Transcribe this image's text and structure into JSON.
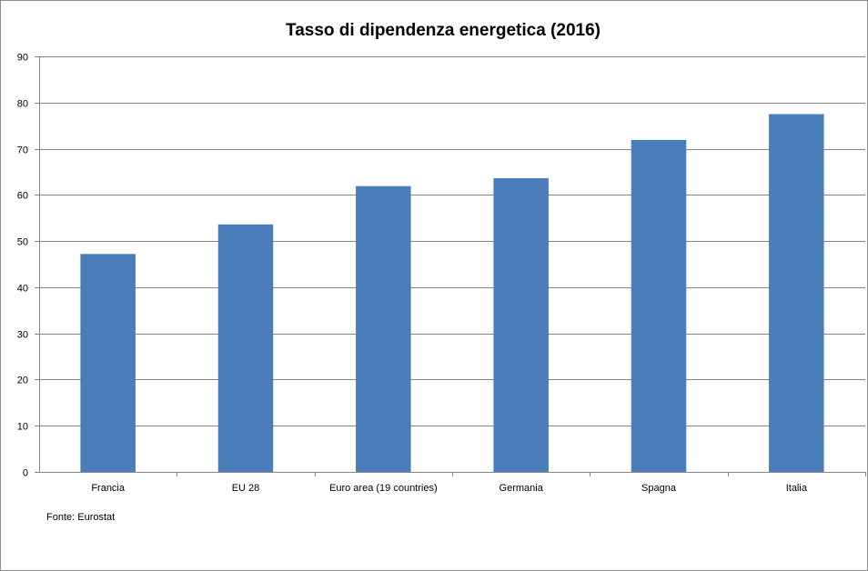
{
  "chart_data": {
    "type": "bar",
    "title": "Tasso di dipendenza energetica (2016)",
    "categories": [
      "Francia",
      "EU 28",
      "Euro area (19 countries)",
      "Germania",
      "Spagna",
      "Italia"
    ],
    "series": [
      {
        "values": [
          47.2,
          53.6,
          61.9,
          63.6,
          71.9,
          77.5
        ]
      }
    ],
    "xlabel": "",
    "ylabel": "",
    "ylim": [
      0,
      90
    ],
    "yticks": [
      0,
      10,
      20,
      30,
      40,
      50,
      60,
      70,
      80,
      90
    ],
    "grid": true,
    "legend": "none",
    "bar_color": "#4a7ebb",
    "grid_color": "#868686"
  },
  "footnote": "Fonte: Eurostat"
}
